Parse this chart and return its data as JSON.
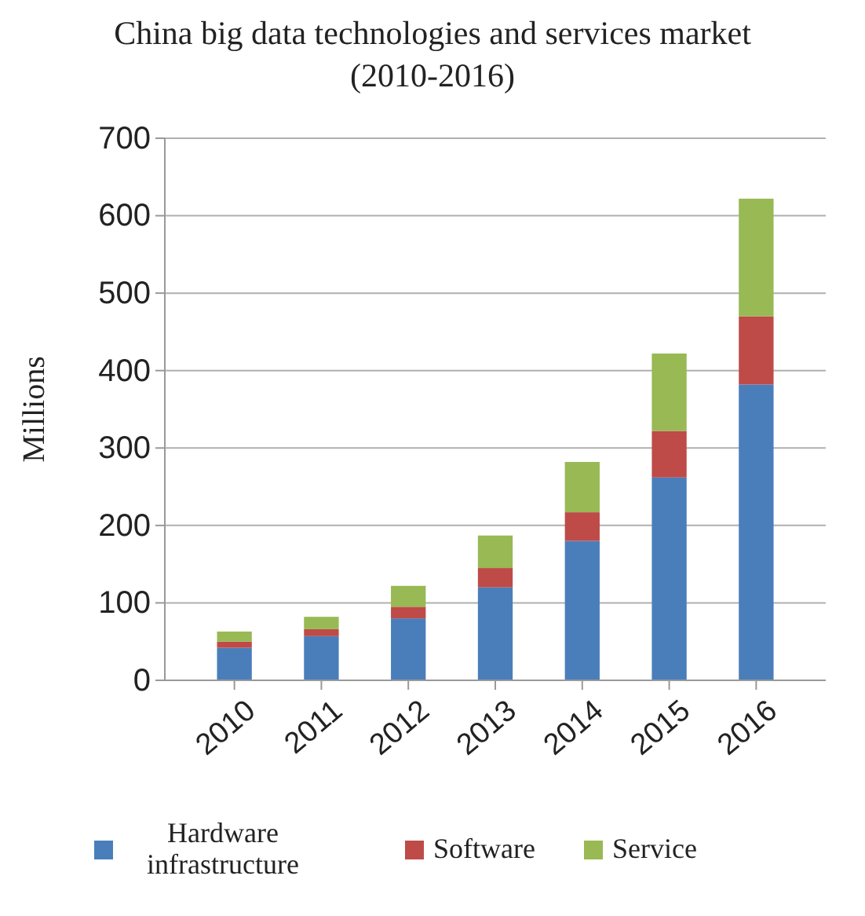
{
  "chart_data": {
    "type": "bar",
    "title": "China big data technologies and services market (2010-2016)",
    "ylabel": "Millions",
    "categories": [
      "2010",
      "2011",
      "2012",
      "2013",
      "2014",
      "2015",
      "2016"
    ],
    "stacked": true,
    "series": [
      {
        "name": "Hardware infrastructure",
        "color": "#4a7ebb",
        "values": [
          42,
          57,
          80,
          120,
          180,
          262,
          382
        ]
      },
      {
        "name": "Software",
        "color": "#be4b48",
        "values": [
          8,
          9,
          15,
          25,
          37,
          60,
          88
        ]
      },
      {
        "name": "Service",
        "color": "#98b954",
        "values": [
          13,
          16,
          27,
          42,
          65,
          100,
          152
        ]
      }
    ],
    "ylim": [
      0,
      700
    ],
    "yticks": [
      0,
      100,
      200,
      300,
      400,
      500,
      600,
      700
    ],
    "grid": "y",
    "legend": "bottom"
  }
}
